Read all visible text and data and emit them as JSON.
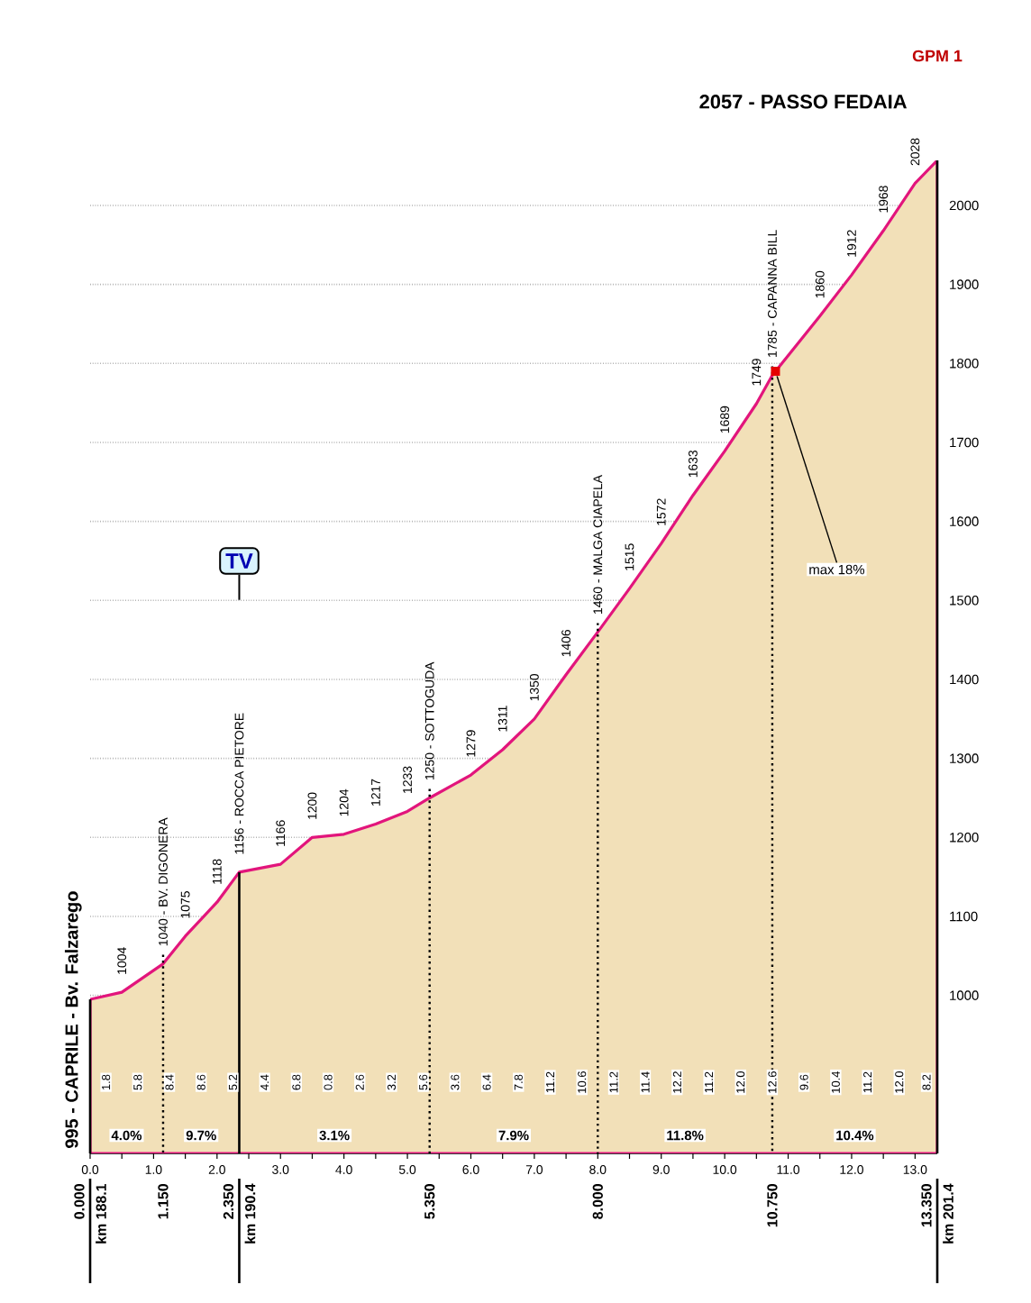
{
  "chart_data": {
    "type": "area",
    "color": "#f2e0b8",
    "x": [
      0,
      0.5,
      1.15,
      1.5,
      2.0,
      2.35,
      3.0,
      3.5,
      4.0,
      4.5,
      5.0,
      5.35,
      6.0,
      6.5,
      7.0,
      7.5,
      8.0,
      8.5,
      9.0,
      9.5,
      10.0,
      10.5,
      10.75,
      11.5,
      12.0,
      12.5,
      13.0,
      13.35
    ],
    "values": [
      995,
      1004,
      1040,
      1075,
      1118,
      1156,
      1166,
      1200,
      1204,
      1217,
      1233,
      1250,
      1279,
      1311,
      1350,
      1406,
      1460,
      1515,
      1572,
      1633,
      1689,
      1749,
      1785,
      1860,
      1912,
      1968,
      2028,
      2057
    ],
    "value_labels": [
      "995 - CAPRILE - Bv. Falzarego",
      "1004",
      "1040 - BV. DIGONERA",
      "1075",
      "1118",
      "1156 - ROCCA PIETORE",
      "1166",
      "1200",
      "1204",
      "1217",
      "1233",
      "1250 - SOTTOGUDA",
      "1279",
      "1311",
      "1350",
      "1406",
      "1460 - MALGA CIAPELA",
      "1515",
      "1572",
      "1633",
      "1689",
      "1749",
      "1785 - CAPANNA BILL",
      "1860",
      "1912",
      "1968",
      "2028",
      "2057 - PASSO FEDAIA"
    ],
    "xlim": [
      0,
      13.35
    ],
    "ylim": [
      800,
      2057
    ],
    "xticks": [
      {
        "value": 0,
        "label": "0.0"
      },
      {
        "value": 0.5,
        "label": null
      },
      {
        "value": 1,
        "label": "1.0"
      },
      {
        "value": 1.5,
        "label": null
      },
      {
        "value": 2,
        "label": "2.0"
      },
      {
        "value": 2.5,
        "label": null
      },
      {
        "value": 3,
        "label": "3.0"
      },
      {
        "value": 3.5,
        "label": null
      },
      {
        "value": 4,
        "label": "4.0"
      },
      {
        "value": 4.5,
        "label": null
      },
      {
        "value": 5,
        "label": "5.0"
      },
      {
        "value": 5.5,
        "label": null
      },
      {
        "value": 6,
        "label": "6.0"
      },
      {
        "value": 6.5,
        "label": null
      },
      {
        "value": 7,
        "label": "7.0"
      },
      {
        "value": 7.5,
        "label": null
      },
      {
        "value": 8,
        "label": "8.0"
      },
      {
        "value": 8.5,
        "label": null
      },
      {
        "value": 9,
        "label": "9.0"
      },
      {
        "value": 9.5,
        "label": null
      },
      {
        "value": 10,
        "label": "10.0"
      },
      {
        "value": 10.5,
        "label": null
      },
      {
        "value": 11,
        "label": "11.0"
      },
      {
        "value": 11.5,
        "label": null
      },
      {
        "value": 12,
        "label": "12.0"
      },
      {
        "value": 12.5,
        "label": null
      },
      {
        "value": 13,
        "label": "13.0"
      }
    ],
    "yticks": [
      1000,
      1100,
      1200,
      1300,
      1400,
      1500,
      1600,
      1700,
      1800,
      1900,
      2000
    ],
    "grid": "y",
    "ref_lines": [
      {
        "axis": "x",
        "value": 0,
        "label": "0.000",
        "line_style": "solid"
      },
      {
        "axis": "x",
        "value": 1.15,
        "label": "1.150",
        "line_style": "dotted"
      },
      {
        "axis": "x",
        "value": 2.35,
        "label": "2.350",
        "line_style": "solid"
      },
      {
        "axis": "x",
        "value": 5.35,
        "label": "5.350",
        "line_style": "dotted"
      },
      {
        "axis": "x",
        "value": 8.0,
        "label": "8.000",
        "line_style": "dotted"
      },
      {
        "axis": "x",
        "value": 10.75,
        "label": "10.750",
        "line_style": "dotted"
      },
      {
        "axis": "x",
        "value": 13.35,
        "label": "13.350",
        "line_style": "solid"
      }
    ],
    "annotations": [
      {
        "text": "1.8",
        "x": 0.25,
        "y": 890
      },
      {
        "text": "5.8",
        "x": 0.75,
        "y": 890
      },
      {
        "text": "8.4",
        "x": 1.25,
        "y": 890
      },
      {
        "text": "8.6",
        "x": 1.75,
        "y": 890
      },
      {
        "text": "5.2",
        "x": 2.25,
        "y": 890
      },
      {
        "text": "4.4",
        "x": 2.75,
        "y": 890
      },
      {
        "text": "6.8",
        "x": 3.25,
        "y": 890
      },
      {
        "text": "0.8",
        "x": 3.75,
        "y": 890
      },
      {
        "text": "2.6",
        "x": 4.25,
        "y": 890
      },
      {
        "text": "3.2",
        "x": 4.75,
        "y": 890
      },
      {
        "text": "5.6",
        "x": 5.25,
        "y": 890
      },
      {
        "text": "3.6",
        "x": 5.75,
        "y": 890
      },
      {
        "text": "6.4",
        "x": 6.25,
        "y": 890
      },
      {
        "text": "7.8",
        "x": 6.75,
        "y": 890
      },
      {
        "text": "11.2",
        "x": 7.25,
        "y": 890
      },
      {
        "text": "10.6",
        "x": 7.75,
        "y": 890
      },
      {
        "text": "11.2",
        "x": 8.25,
        "y": 890
      },
      {
        "text": "11.4",
        "x": 8.75,
        "y": 890
      },
      {
        "text": "12.2",
        "x": 9.25,
        "y": 890
      },
      {
        "text": "11.2",
        "x": 9.75,
        "y": 890
      },
      {
        "text": "12.0",
        "x": 10.25,
        "y": 890
      },
      {
        "text": "12.6",
        "x": 10.75,
        "y": 890
      },
      {
        "text": "9.6",
        "x": 11.25,
        "y": 890
      },
      {
        "text": "10.4",
        "x": 11.75,
        "y": 890
      },
      {
        "text": "11.2",
        "x": 12.25,
        "y": 890
      },
      {
        "text": "12.0",
        "x": 12.75,
        "y": 890
      },
      {
        "text": "8.2",
        "x": 13.18,
        "y": 890
      },
      "4.0%",
      "9.7%",
      "3.1%",
      "7.9%",
      "11.8%",
      "10.4%",
      "km 188.1",
      "km 190.4",
      "km 201.4",
      "GPM 1",
      {
        "text": "TV",
        "x": 2.35,
        "y": 1550
      },
      {
        "text": "max 18%",
        "x": 10.8,
        "y": 1790
      }
    ]
  }
}
